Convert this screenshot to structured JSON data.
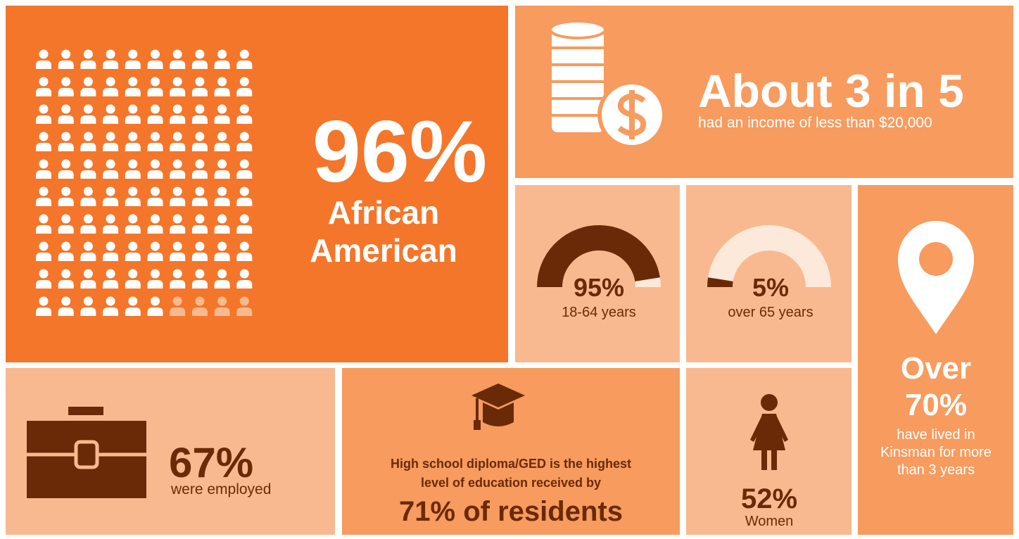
{
  "people": {
    "value": 96,
    "value_label": "96%",
    "caption_lines": [
      "African",
      "American"
    ]
  },
  "income": {
    "headline": "About 3 in 5",
    "caption": "had an income of less than $20,000"
  },
  "gauges": [
    {
      "value": 95,
      "value_label": "95%",
      "caption": "18-64 years"
    },
    {
      "value": 5,
      "value_label": "5%",
      "caption": "over 65 years"
    }
  ],
  "residence": {
    "headline_lines": [
      "Over",
      "70%"
    ],
    "caption_lines": [
      "have lived in",
      "Kinsman for more",
      "than 3 years"
    ]
  },
  "employment": {
    "value_label": "67%",
    "caption": "were employed"
  },
  "education": {
    "caption_lines": [
      "High school diploma/GED is the highest",
      "level of education received by"
    ],
    "headline": "71% of residents"
  },
  "women": {
    "value_label": "52%",
    "caption": "Women"
  }
}
